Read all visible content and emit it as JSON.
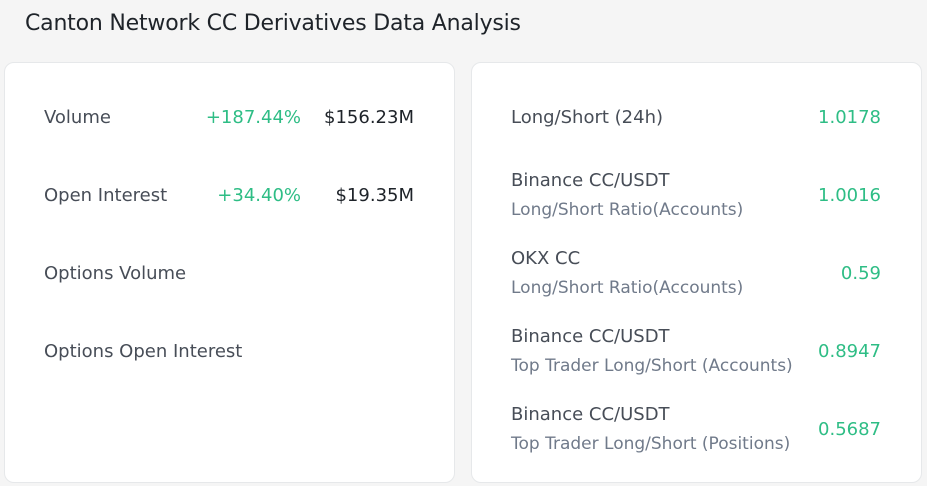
{
  "page": {
    "title": "Canton Network CC Derivatives Data Analysis"
  },
  "summary": {
    "rows": [
      {
        "label": "Volume",
        "change": "+187.44%",
        "amount": "$156.23M"
      },
      {
        "label": "Open Interest",
        "change": "+34.40%",
        "amount": "$19.35M"
      },
      {
        "label": "Options Volume",
        "change": "",
        "amount": ""
      },
      {
        "label": "Options Open Interest",
        "change": "",
        "amount": ""
      }
    ]
  },
  "ratios": {
    "rows": [
      {
        "label": "Long/Short (24h)",
        "sub": "",
        "value": "1.0178"
      },
      {
        "label": "Binance CC/USDT",
        "sub": "Long/Short Ratio(Accounts)",
        "value": "1.0016"
      },
      {
        "label": "OKX CC",
        "sub": "Long/Short Ratio(Accounts)",
        "value": "0.59"
      },
      {
        "label": "Binance CC/USDT",
        "sub": "Top Trader Long/Short (Accounts)",
        "value": "0.8947"
      },
      {
        "label": "Binance CC/USDT",
        "sub": "Top Trader Long/Short (Positions)",
        "value": "0.5687"
      }
    ]
  },
  "colors": {
    "positive": "#2ebd85",
    "page_background": "#f5f5f5",
    "card_background": "#ffffff"
  }
}
